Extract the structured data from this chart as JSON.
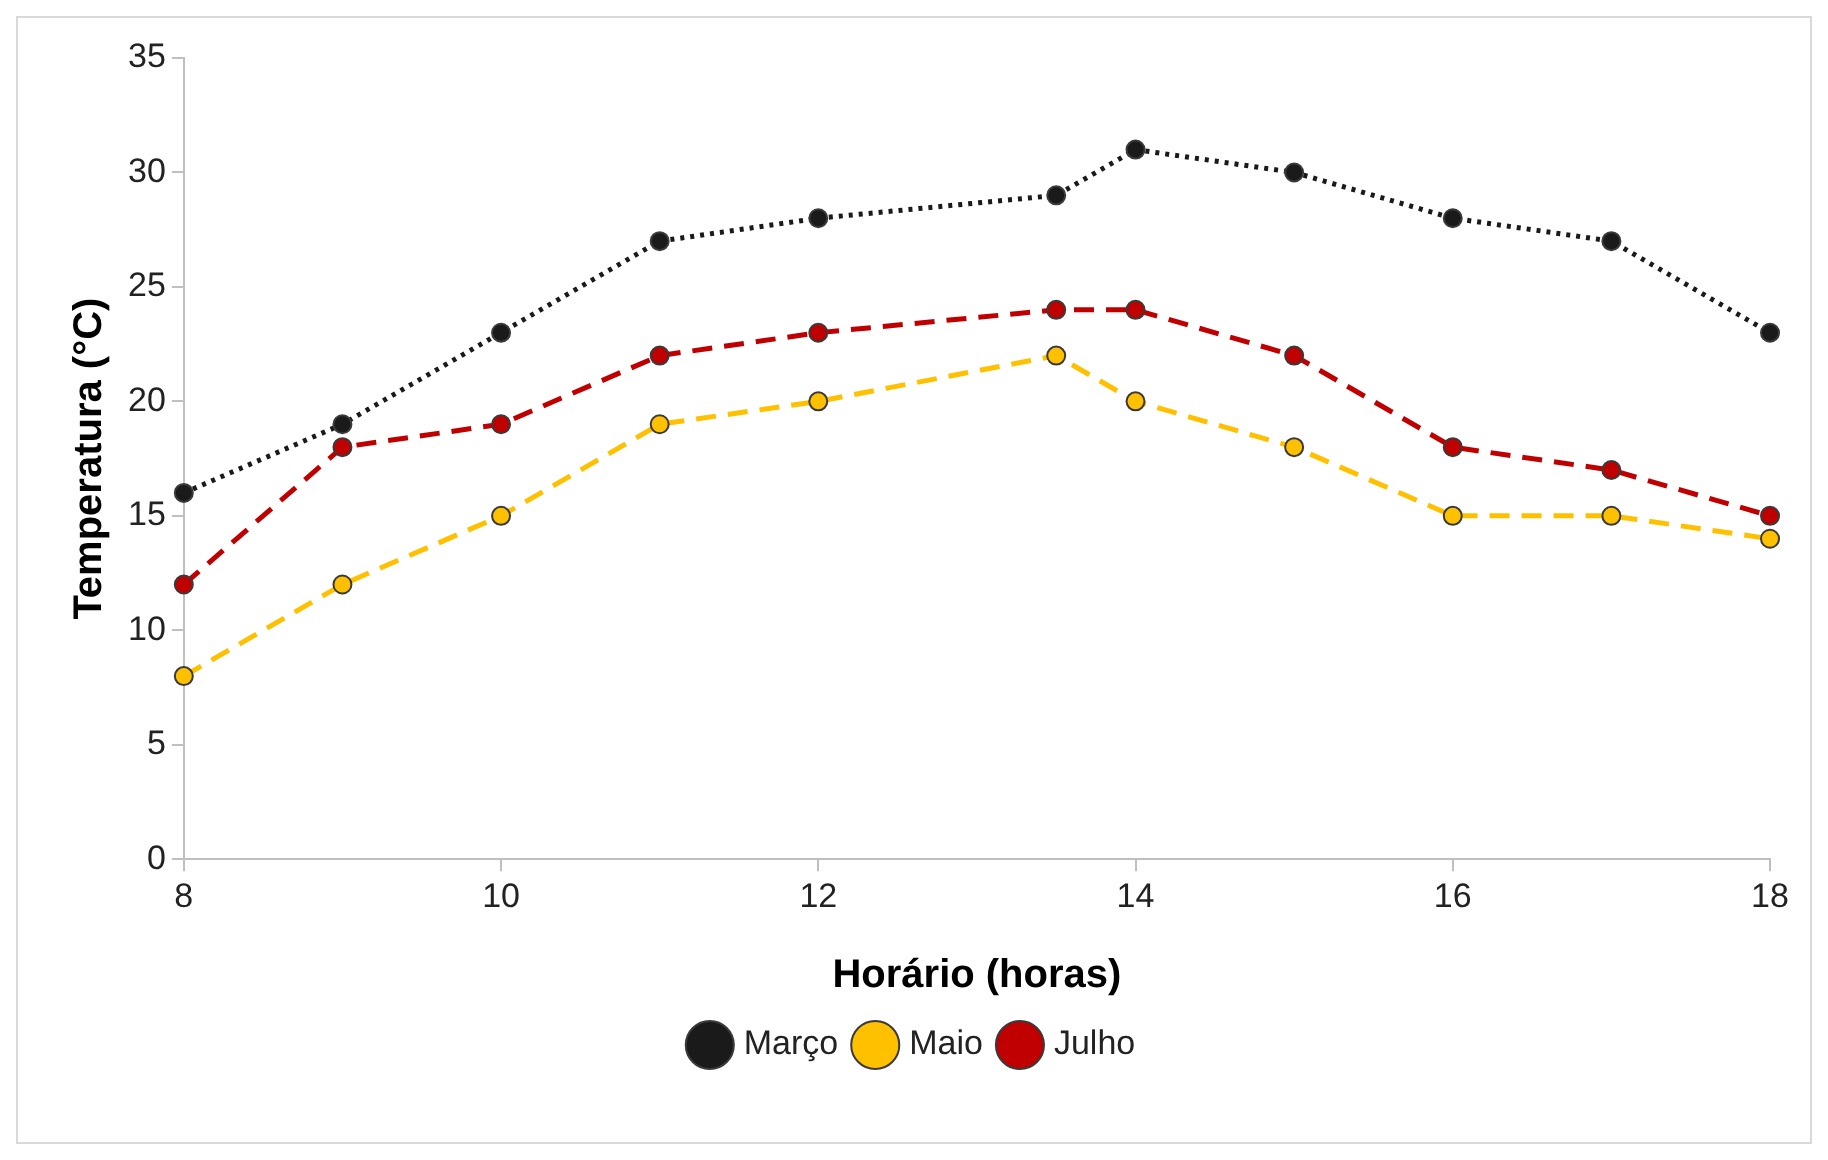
{
  "chart_data": {
    "type": "line",
    "xlabel": "Horário (horas)",
    "ylabel": "Temperatura (°C)",
    "x": [
      8,
      9,
      10,
      11,
      12,
      13.5,
      14,
      15,
      16,
      17,
      18
    ],
    "xlim": [
      8,
      18
    ],
    "xticks": [
      8,
      10,
      12,
      14,
      16,
      18
    ],
    "ylim": [
      0,
      35
    ],
    "yticks": [
      0,
      5,
      10,
      15,
      20,
      25,
      30,
      35
    ],
    "grid": false,
    "legend": "bottom",
    "marker": "circle",
    "series": [
      {
        "name": "Março",
        "color": "#1a1a1a",
        "line_style": "dotted",
        "values": [
          16,
          19,
          23,
          27,
          28,
          29,
          31,
          30,
          28,
          27,
          23
        ]
      },
      {
        "name": "Maio",
        "color": "#ffc000",
        "line_style": "dashed",
        "values": [
          8,
          12,
          15,
          19,
          20,
          22,
          20,
          18,
          15,
          15,
          14
        ]
      },
      {
        "name": "Julho",
        "color": "#c00000",
        "line_style": "dashed",
        "values": [
          12,
          18,
          19,
          22,
          23,
          24,
          24,
          22,
          18,
          17,
          15
        ]
      }
    ]
  }
}
